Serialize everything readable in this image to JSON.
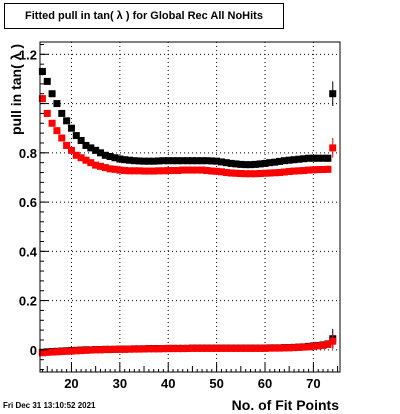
{
  "title": "Fitted pull in tan( λ ) for Global Rec All NoHits",
  "timestamp": "Fri Dec 31 13:10:52 2021",
  "chart_data": {
    "type": "scatter",
    "xlabel": "No. of Fit Points",
    "ylabel": "pull in tan( λ )",
    "xlim": [
      13.5,
      75.5
    ],
    "ylim": [
      -0.09,
      1.25
    ],
    "x_ticks": [
      "20",
      "30",
      "40",
      "50",
      "60",
      "70"
    ],
    "y_ticks": [
      "0",
      "0.2",
      "0.4",
      "0.6",
      "0.8",
      "1.2"
    ],
    "grid": true,
    "legend": "none",
    "x": [
      14,
      15,
      16,
      17,
      18,
      19,
      20,
      21,
      22,
      23,
      24,
      25,
      26,
      27,
      28,
      29,
      30,
      31,
      32,
      33,
      34,
      35,
      36,
      37,
      38,
      39,
      40,
      41,
      42,
      43,
      44,
      45,
      46,
      47,
      48,
      49,
      50,
      51,
      52,
      53,
      54,
      55,
      56,
      57,
      58,
      59,
      60,
      61,
      62,
      63,
      64,
      65,
      66,
      67,
      68,
      69,
      70,
      71,
      72,
      73,
      74
    ],
    "series": [
      {
        "color": "#000000",
        "values": [
          1.13,
          1.09,
          1.04,
          1.0,
          0.96,
          0.93,
          0.9,
          0.87,
          0.85,
          0.83,
          0.82,
          0.81,
          0.8,
          0.79,
          0.785,
          0.78,
          0.775,
          0.772,
          0.77,
          0.768,
          0.767,
          0.766,
          0.766,
          0.766,
          0.767,
          0.768,
          0.768,
          0.768,
          0.768,
          0.768,
          0.768,
          0.768,
          0.768,
          0.768,
          0.768,
          0.767,
          0.766,
          0.763,
          0.76,
          0.757,
          0.755,
          0.753,
          0.752,
          0.752,
          0.753,
          0.755,
          0.757,
          0.76,
          0.762,
          0.765,
          0.768,
          0.77,
          0.772,
          0.774,
          0.776,
          0.778,
          0.778,
          0.778,
          0.778,
          0.778,
          1.04
        ],
        "err": [
          0.015,
          0.012,
          0.01,
          0.01,
          0.009,
          0.008,
          0.008,
          0.007,
          0.007,
          0.006,
          0.006,
          0.006,
          0.006,
          0.006,
          0.005,
          0.005,
          0.005,
          0.005,
          0.005,
          0.005,
          0.005,
          0.005,
          0.005,
          0.005,
          0.005,
          0.005,
          0.005,
          0.005,
          0.005,
          0.005,
          0.005,
          0.005,
          0.005,
          0.005,
          0.005,
          0.005,
          0.005,
          0.005,
          0.005,
          0.005,
          0.005,
          0.005,
          0.005,
          0.005,
          0.005,
          0.005,
          0.005,
          0.005,
          0.005,
          0.006,
          0.006,
          0.006,
          0.006,
          0.007,
          0.007,
          0.008,
          0.009,
          0.01,
          0.012,
          0.015,
          0.05
        ]
      },
      {
        "color": "#ff0000",
        "values": [
          1.02,
          0.96,
          0.92,
          0.89,
          0.86,
          0.83,
          0.81,
          0.79,
          0.78,
          0.77,
          0.76,
          0.75,
          0.745,
          0.74,
          0.735,
          0.733,
          0.73,
          0.728,
          0.727,
          0.727,
          0.727,
          0.726,
          0.726,
          0.726,
          0.727,
          0.727,
          0.728,
          0.728,
          0.728,
          0.73,
          0.73,
          0.73,
          0.73,
          0.73,
          0.728,
          0.726,
          0.725,
          0.723,
          0.72,
          0.718,
          0.717,
          0.716,
          0.715,
          0.715,
          0.715,
          0.716,
          0.717,
          0.718,
          0.719,
          0.72,
          0.722,
          0.724,
          0.726,
          0.727,
          0.728,
          0.73,
          0.731,
          0.732,
          0.732,
          0.733,
          0.82
        ],
        "err": [
          0.015,
          0.012,
          0.01,
          0.01,
          0.009,
          0.008,
          0.008,
          0.007,
          0.007,
          0.006,
          0.006,
          0.006,
          0.006,
          0.006,
          0.005,
          0.005,
          0.005,
          0.005,
          0.005,
          0.005,
          0.005,
          0.005,
          0.005,
          0.005,
          0.005,
          0.005,
          0.005,
          0.005,
          0.005,
          0.005,
          0.005,
          0.005,
          0.005,
          0.005,
          0.005,
          0.005,
          0.005,
          0.005,
          0.005,
          0.005,
          0.005,
          0.005,
          0.005,
          0.005,
          0.005,
          0.005,
          0.005,
          0.005,
          0.005,
          0.006,
          0.006,
          0.006,
          0.006,
          0.007,
          0.007,
          0.008,
          0.009,
          0.01,
          0.012,
          0.015,
          0.04
        ]
      },
      {
        "color": "#000000",
        "values": [
          -0.01,
          -0.008,
          -0.007,
          -0.006,
          -0.005,
          -0.004,
          -0.003,
          -0.002,
          -0.001,
          0.0,
          0.0,
          0.001,
          0.001,
          0.002,
          0.002,
          0.002,
          0.003,
          0.003,
          0.003,
          0.004,
          0.004,
          0.004,
          0.005,
          0.005,
          0.005,
          0.005,
          0.006,
          0.006,
          0.006,
          0.006,
          0.006,
          0.007,
          0.007,
          0.007,
          0.007,
          0.007,
          0.007,
          0.007,
          0.007,
          0.007,
          0.007,
          0.007,
          0.007,
          0.007,
          0.007,
          0.007,
          0.007,
          0.008,
          0.008,
          0.008,
          0.009,
          0.009,
          0.01,
          0.011,
          0.012,
          0.014,
          0.016,
          0.018,
          0.02,
          0.024,
          0.045
        ],
        "err": [
          0.01,
          0.008,
          0.006,
          0.006,
          0.005,
          0.005,
          0.005,
          0.004,
          0.004,
          0.004,
          0.004,
          0.004,
          0.004,
          0.004,
          0.004,
          0.004,
          0.004,
          0.004,
          0.004,
          0.004,
          0.004,
          0.004,
          0.004,
          0.004,
          0.004,
          0.004,
          0.004,
          0.004,
          0.004,
          0.004,
          0.004,
          0.004,
          0.004,
          0.004,
          0.004,
          0.004,
          0.004,
          0.004,
          0.004,
          0.004,
          0.004,
          0.004,
          0.004,
          0.004,
          0.004,
          0.004,
          0.004,
          0.004,
          0.004,
          0.004,
          0.005,
          0.005,
          0.005,
          0.006,
          0.006,
          0.007,
          0.008,
          0.009,
          0.01,
          0.012,
          0.04
        ]
      },
      {
        "color": "#ff0000",
        "values": [
          -0.012,
          -0.01,
          -0.009,
          -0.008,
          -0.007,
          -0.006,
          -0.005,
          -0.004,
          -0.003,
          -0.002,
          -0.001,
          0.0,
          0.0,
          0.001,
          0.001,
          0.002,
          0.002,
          0.002,
          0.003,
          0.003,
          0.003,
          0.004,
          0.004,
          0.004,
          0.004,
          0.005,
          0.005,
          0.005,
          0.005,
          0.005,
          0.006,
          0.006,
          0.006,
          0.006,
          0.006,
          0.006,
          0.006,
          0.006,
          0.006,
          0.006,
          0.006,
          0.006,
          0.006,
          0.006,
          0.006,
          0.006,
          0.006,
          0.007,
          0.007,
          0.007,
          0.008,
          0.008,
          0.009,
          0.01,
          0.011,
          0.012,
          0.014,
          0.016,
          0.018,
          0.022,
          0.035
        ],
        "err": [
          0.01,
          0.008,
          0.006,
          0.006,
          0.005,
          0.005,
          0.005,
          0.004,
          0.004,
          0.004,
          0.004,
          0.004,
          0.004,
          0.004,
          0.004,
          0.004,
          0.004,
          0.004,
          0.004,
          0.004,
          0.004,
          0.004,
          0.004,
          0.004,
          0.004,
          0.004,
          0.004,
          0.004,
          0.004,
          0.004,
          0.004,
          0.004,
          0.004,
          0.004,
          0.004,
          0.004,
          0.004,
          0.004,
          0.004,
          0.004,
          0.004,
          0.004,
          0.004,
          0.004,
          0.004,
          0.004,
          0.004,
          0.004,
          0.004,
          0.004,
          0.005,
          0.005,
          0.005,
          0.006,
          0.006,
          0.007,
          0.008,
          0.009,
          0.01,
          0.012,
          0.03
        ]
      }
    ]
  }
}
